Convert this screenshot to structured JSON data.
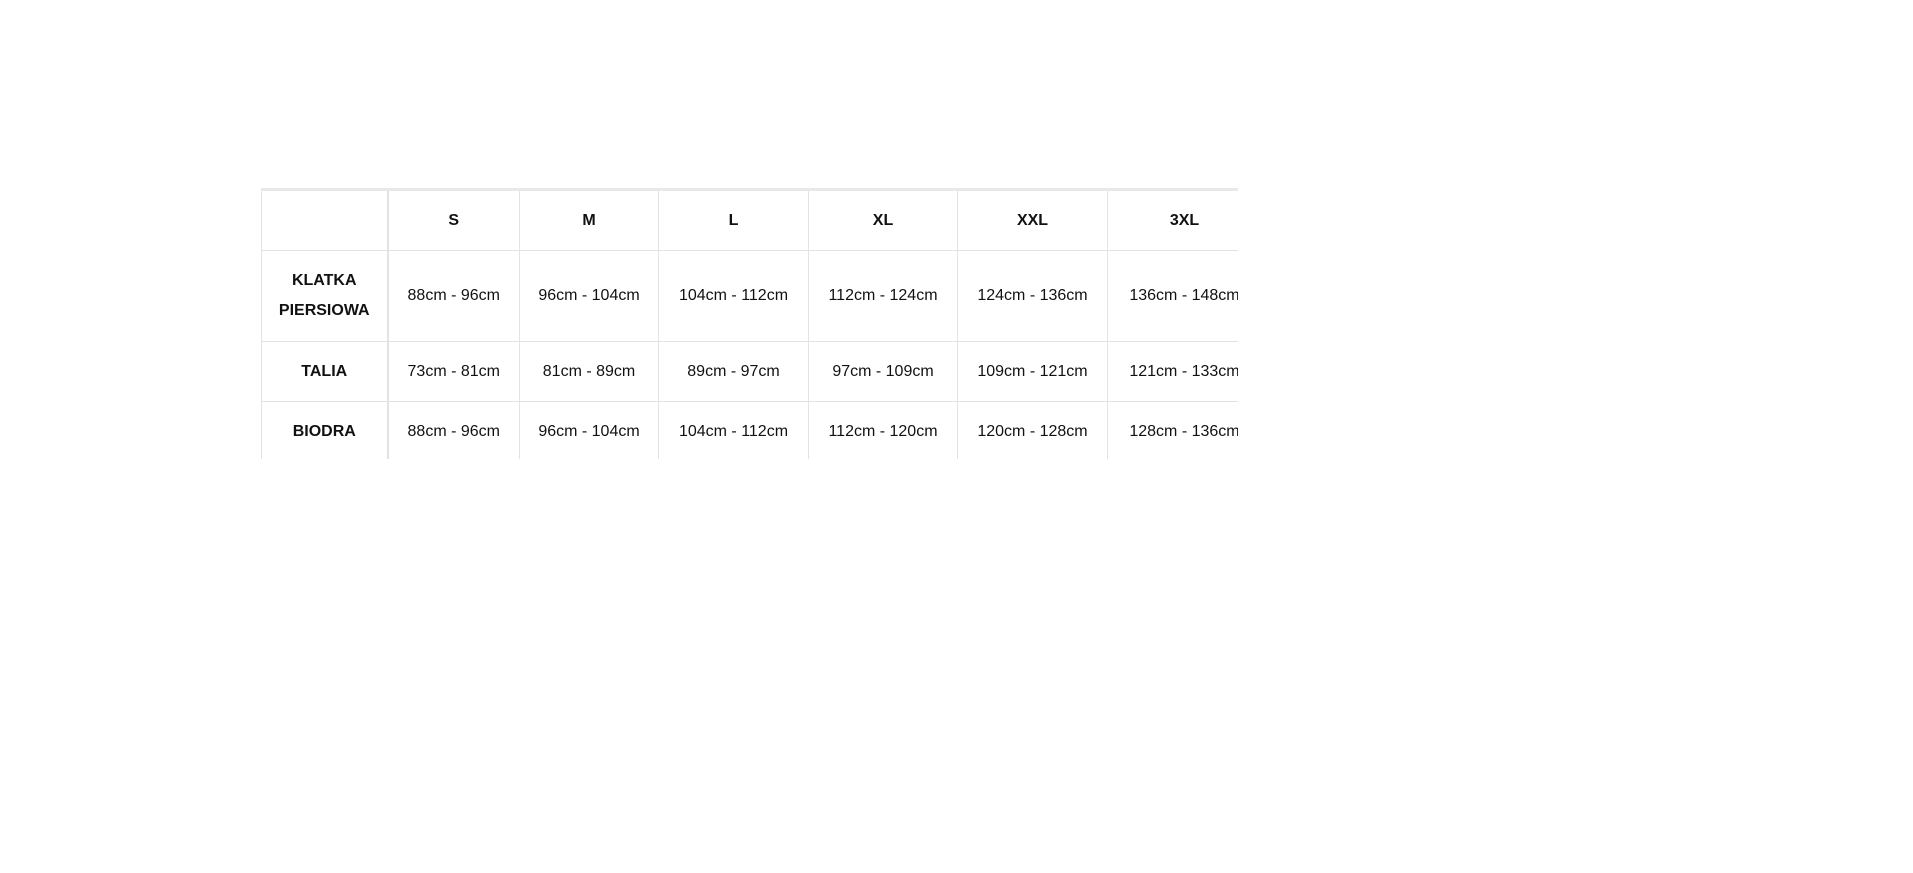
{
  "table": {
    "headers": [
      "",
      "S",
      "M",
      "L",
      "XL",
      "XXL",
      "3XL"
    ],
    "rows": [
      {
        "label_line1": "KLATKA",
        "label_line2": "PIERSIOWA",
        "values": [
          "88cm - 96cm",
          "96cm - 104cm",
          "104cm - 112cm",
          "112cm - 124cm",
          "124cm - 136cm",
          "136cm - 148cm"
        ]
      },
      {
        "label_line1": "TALIA",
        "values": [
          "73cm - 81cm",
          "81cm - 89cm",
          "89cm - 97cm",
          "97cm - 109cm",
          "109cm - 121cm",
          "121cm - 133cm"
        ]
      },
      {
        "label_line1": "BIODRA",
        "values": [
          "88cm - 96cm",
          "96cm - 104cm",
          "104cm - 112cm",
          "112cm - 120cm",
          "120cm - 128cm",
          "128cm - 136cm"
        ]
      }
    ]
  }
}
